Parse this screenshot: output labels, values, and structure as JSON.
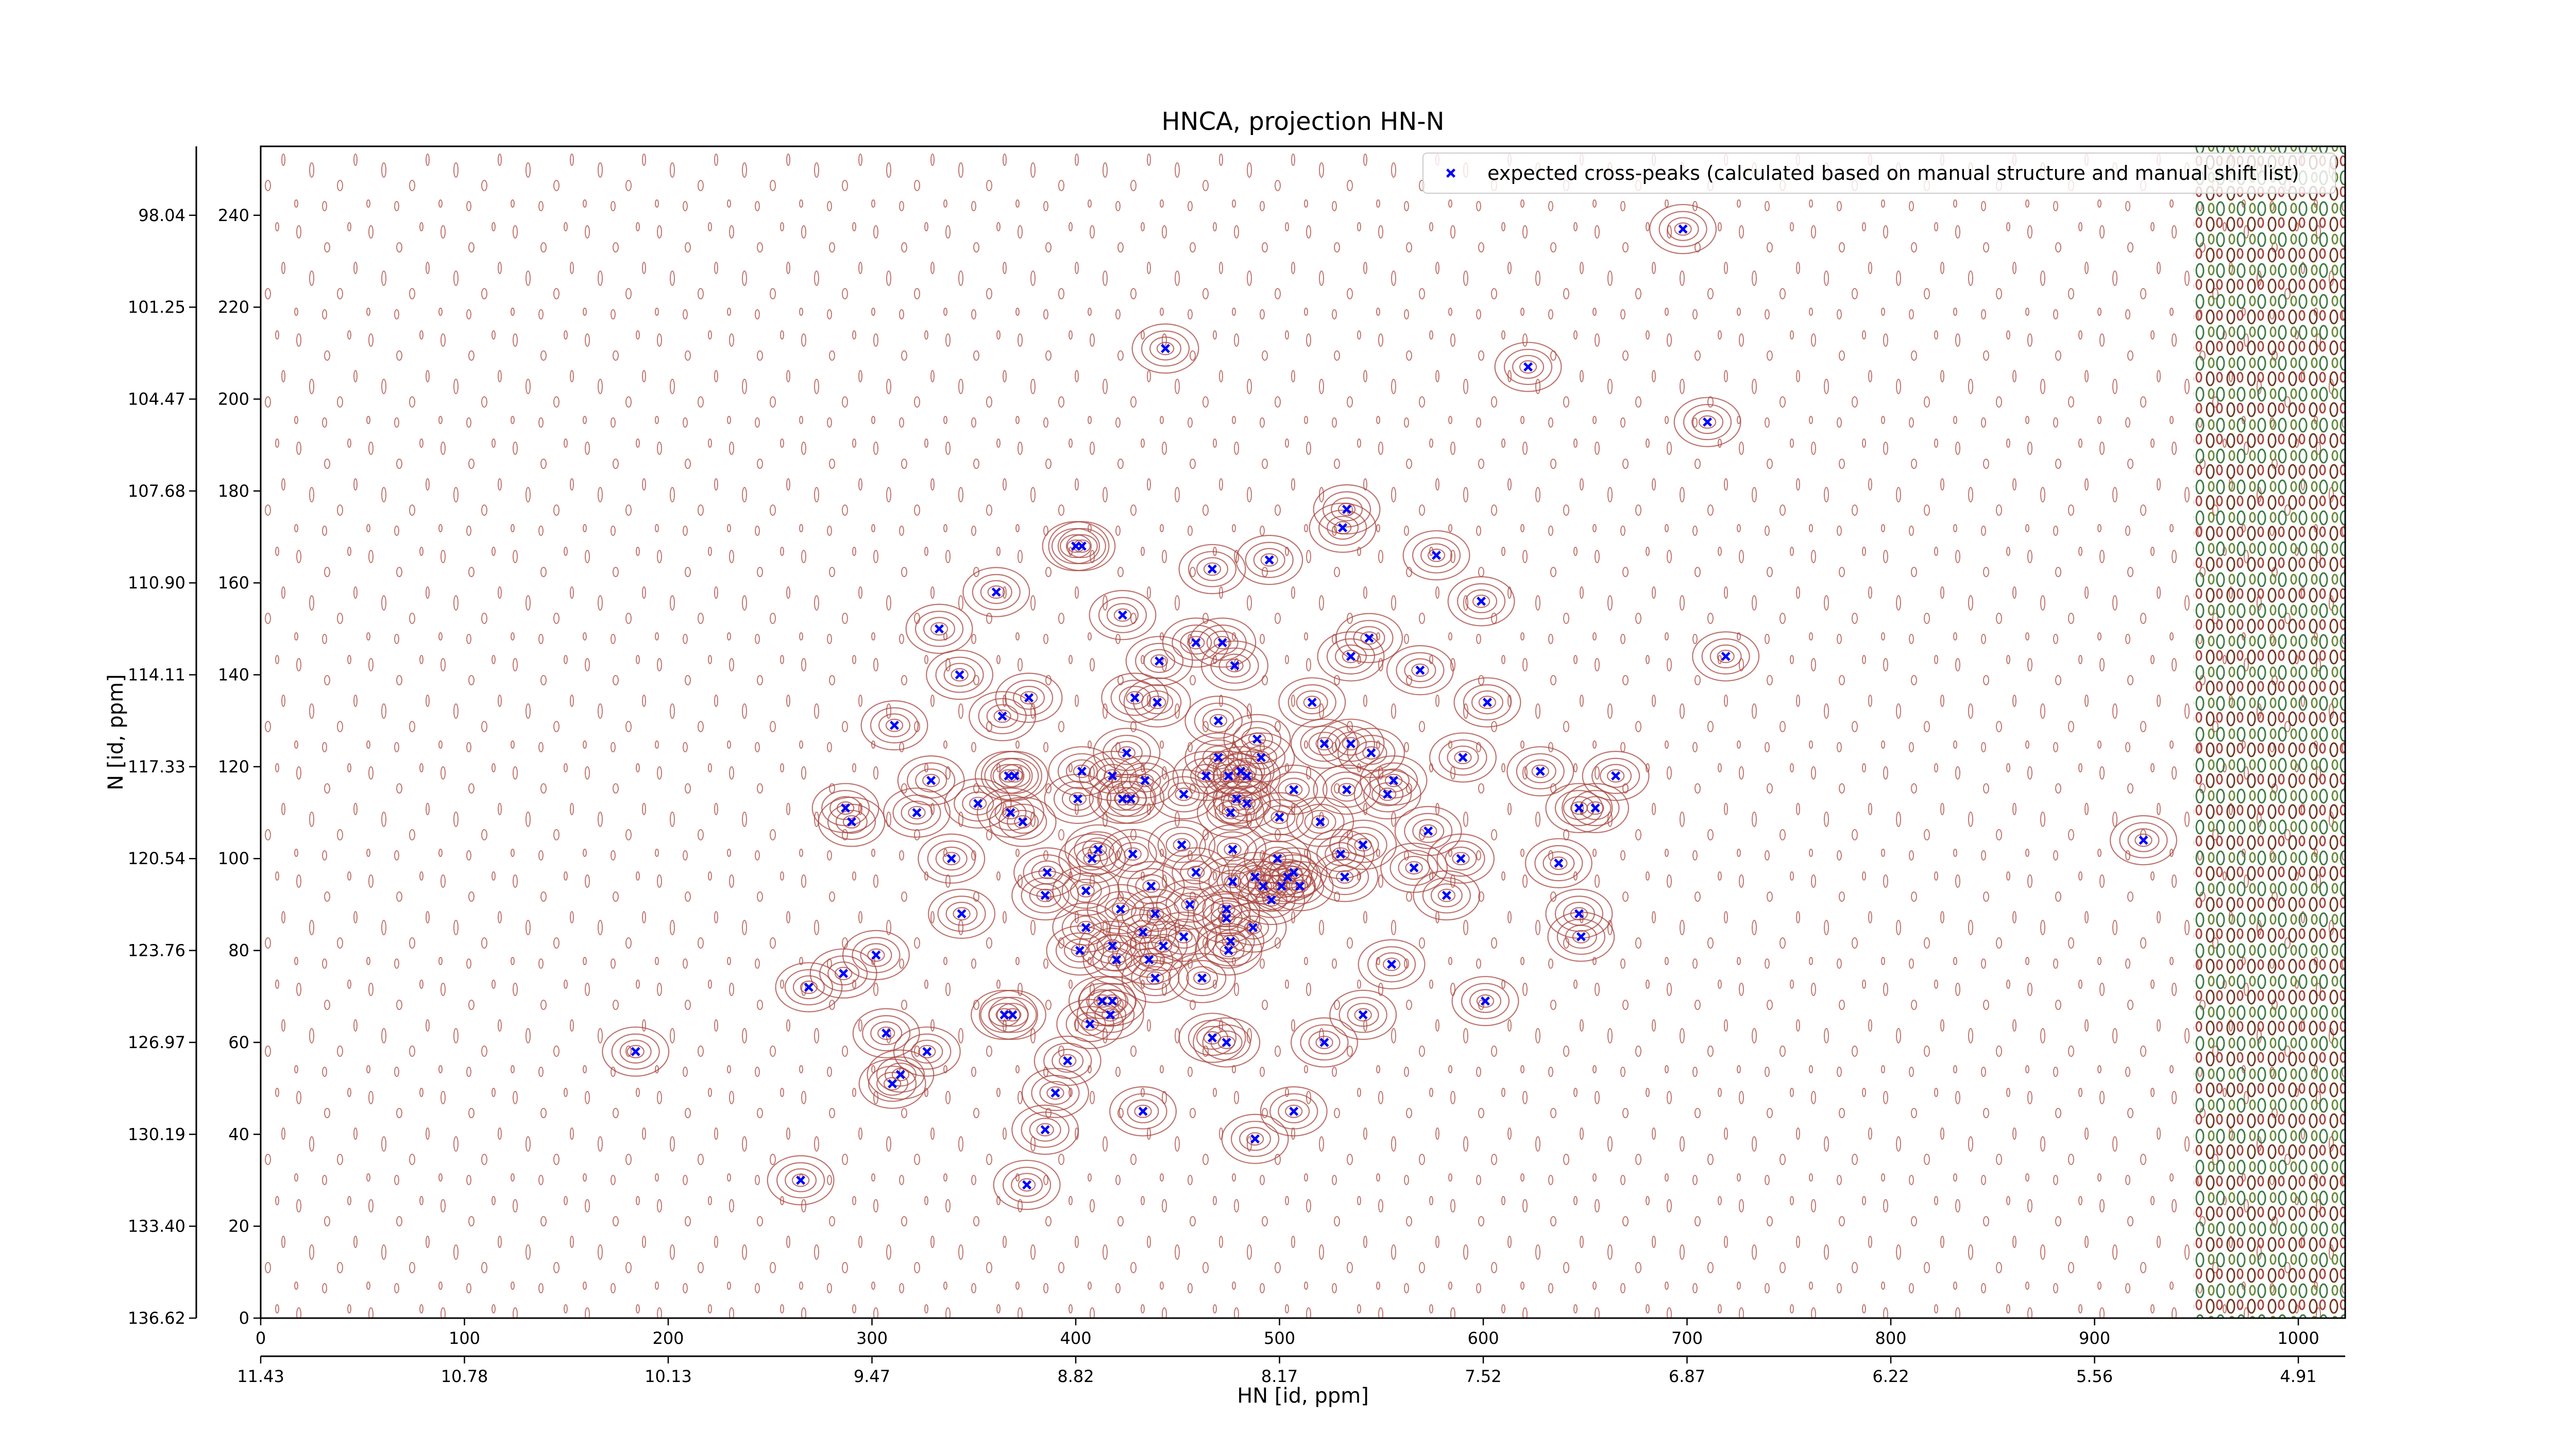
{
  "chart_data": {
    "type": "scatter",
    "title": "HNCA, projection HN-N",
    "xlabel": "HN [id, ppm]",
    "ylabel": "N [id, ppm]",
    "xlim": [
      0,
      1023
    ],
    "ylim": [
      0,
      255
    ],
    "xticks": [
      0,
      100,
      200,
      300,
      400,
      500,
      600,
      700,
      800,
      900,
      1000
    ],
    "yticks": [
      0,
      20,
      40,
      60,
      80,
      100,
      120,
      140,
      160,
      180,
      200,
      220,
      240
    ],
    "x2ticks": [
      {
        "value": 0,
        "label": "11.43"
      },
      {
        "value": 100,
        "label": "10.78"
      },
      {
        "value": 200,
        "label": "10.13"
      },
      {
        "value": 300,
        "label": "9.47"
      },
      {
        "value": 400,
        "label": "8.82"
      },
      {
        "value": 500,
        "label": "8.17"
      },
      {
        "value": 600,
        "label": "7.52"
      },
      {
        "value": 700,
        "label": "6.87"
      },
      {
        "value": 800,
        "label": "6.22"
      },
      {
        "value": 900,
        "label": "5.56"
      },
      {
        "value": 1000,
        "label": "4.91"
      }
    ],
    "y2ticks": [
      {
        "value": 0,
        "label": "136.62"
      },
      {
        "value": 20,
        "label": "133.40"
      },
      {
        "value": 40,
        "label": "130.19"
      },
      {
        "value": 60,
        "label": "126.97"
      },
      {
        "value": 80,
        "label": "123.76"
      },
      {
        "value": 100,
        "label": "120.54"
      },
      {
        "value": 120,
        "label": "117.33"
      },
      {
        "value": 140,
        "label": "114.11"
      },
      {
        "value": 160,
        "label": "110.90"
      },
      {
        "value": 180,
        "label": "107.68"
      },
      {
        "value": 200,
        "label": "104.47"
      },
      {
        "value": 220,
        "label": "101.25"
      },
      {
        "value": 240,
        "label": "98.04"
      }
    ],
    "legend_loc": "upper right",
    "series": [
      {
        "name": "expected cross-peaks (calculated based on manual structure and manual shift list)",
        "color": "#0000ff",
        "x": [
          698,
          444,
          622,
          710,
          533,
          531,
          400,
          403,
          577,
          467,
          495,
          361,
          599,
          423,
          333,
          472,
          459,
          544,
          719,
          441,
          535,
          569,
          343,
          478,
          602,
          377,
          429,
          440,
          516,
          364,
          470,
          311,
          489,
          522,
          535,
          545,
          470,
          491,
          590,
          425,
          403,
          367,
          370,
          464,
          475,
          481,
          484,
          418,
          628,
          665,
          329,
          556,
          434,
          507,
          533,
          479,
          553,
          423,
          427,
          453,
          401,
          484,
          287,
          352,
          322,
          368,
          374,
          290,
          647,
          655,
          476,
          500,
          573,
          520,
          452,
          541,
          924,
          339,
          411,
          408,
          428,
          477,
          530,
          499,
          589,
          637,
          566,
          386,
          459,
          507,
          532,
          504,
          488,
          492,
          477,
          437,
          405,
          385,
          501,
          510,
          582,
          496,
          474,
          422,
          439,
          456,
          647,
          344,
          474,
          405,
          487,
          648,
          433,
          476,
          453,
          402,
          475,
          443,
          418,
          302,
          436,
          555,
          420,
          286,
          462,
          439,
          269,
          413,
          418,
          417,
          365,
          369,
          601,
          541,
          407,
          307,
          467,
          474,
          522,
          327,
          184,
          396,
          314,
          310,
          390,
          433,
          507,
          385,
          488,
          265,
          376
        ],
        "values": [
          237,
          211,
          207,
          195,
          176,
          172,
          168,
          168,
          166,
          163,
          165,
          158,
          156,
          153,
          150,
          147,
          147,
          148,
          144,
          143,
          144,
          141,
          140,
          142,
          134,
          135,
          135,
          134,
          134,
          131,
          130,
          129,
          126,
          125,
          125,
          123,
          122,
          122,
          122,
          123,
          119,
          118,
          118,
          118,
          118,
          119,
          118,
          118,
          119,
          118,
          117,
          117,
          117,
          115,
          115,
          113,
          114,
          113,
          113,
          114,
          113,
          112,
          111,
          112,
          110,
          110,
          108,
          108,
          111,
          111,
          110,
          109,
          106,
          108,
          103,
          103,
          104,
          100,
          102,
          100,
          101,
          102,
          101,
          100,
          100,
          99,
          98,
          97,
          97,
          97,
          96,
          96,
          96,
          94,
          95,
          94,
          93,
          92,
          94,
          94,
          92,
          91,
          89,
          89,
          88,
          90,
          88,
          88,
          87,
          85,
          85,
          83,
          84,
          82,
          83,
          80,
          80,
          81,
          81,
          79,
          78,
          77,
          78,
          75,
          74,
          74,
          72,
          69,
          69,
          66,
          66,
          66,
          69,
          66,
          64,
          62,
          61,
          60,
          60,
          58,
          58,
          56,
          53,
          51,
          49,
          45,
          45,
          41,
          39,
          30,
          29
        ]
      }
    ]
  }
}
